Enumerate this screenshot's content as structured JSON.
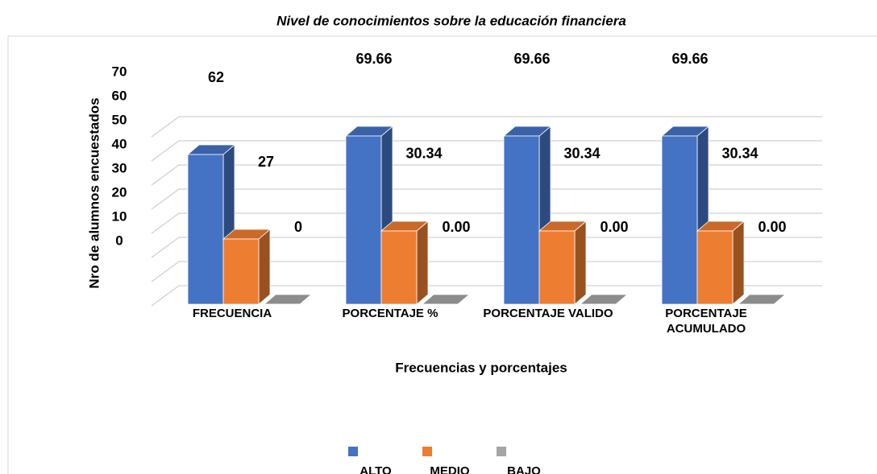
{
  "chart_data": {
    "type": "bar3d",
    "title": "Nivel de conocimientos sobre la educación financiera",
    "x_label": "Frecuencias y porcentajes",
    "y_label": "Nro de alumnos encuestados",
    "categories": [
      "FRECUENCIA",
      "PORCENTAJE %",
      "PORCENTAJE VALIDO",
      "PORCENTAJE ACUMULADO"
    ],
    "series": [
      {
        "name": "ALTO",
        "color": "#4472c4",
        "values": [
          62,
          69.66,
          69.66,
          69.66
        ],
        "value_labels": [
          "62",
          "69.66",
          "69.66",
          "69.66"
        ]
      },
      {
        "name": "MEDIO",
        "color": "#ed7d31",
        "values": [
          27,
          30.34,
          30.34,
          30.34
        ],
        "value_labels": [
          "27",
          "30.34",
          "30.34",
          "30.34"
        ]
      },
      {
        "name": "BAJO",
        "color": "#a5a5a5",
        "values": [
          0,
          0,
          0,
          0
        ],
        "value_labels": [
          "0",
          "0.00",
          "0.00",
          "0.00"
        ]
      }
    ],
    "ylim": [
      0,
      70
    ],
    "yticks": [
      0,
      10,
      20,
      30,
      40,
      50,
      60,
      70
    ],
    "grid": true,
    "legend": "bottom"
  }
}
